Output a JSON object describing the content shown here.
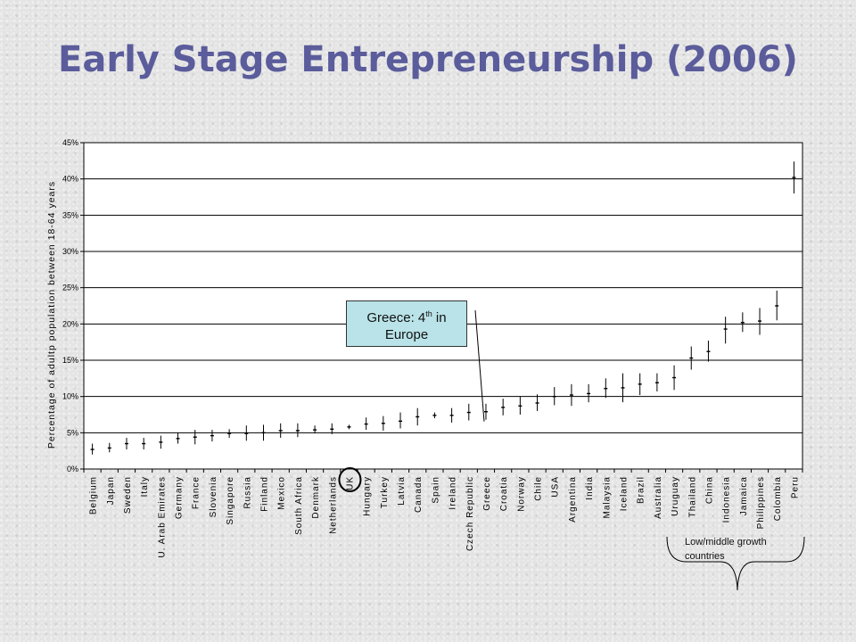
{
  "title": "Early Stage Entrepreneurship (2006)",
  "callout": {
    "text": "Greece: 4",
    "sup": "th",
    "text2": " in",
    "line2": "Europe"
  },
  "group_label": {
    "line1": "Low/middle growth",
    "line2": "countries"
  },
  "chart_data": {
    "type": "errorbar",
    "ylabel": "Percentage of adultp population between 18-64 years",
    "ylim": [
      0,
      45
    ],
    "yticks": [
      "0%",
      "5%",
      "10%",
      "15%",
      "20%",
      "25%",
      "30%",
      "35%",
      "40%",
      "45%"
    ],
    "grid": true,
    "highlight": "UK",
    "categories": [
      "Belgium",
      "Japan",
      "Sweden",
      "Italy",
      "U. Arab Emirates",
      "Germany",
      "France",
      "Slovenia",
      "Singapore",
      "Russia",
      "Finland",
      "Mexico",
      "South Africa",
      "Denmark",
      "Netherlands",
      "UK",
      "Hungary",
      "Turkey",
      "Latvia",
      "Canada",
      "Spain",
      "Ireland",
      "Czech Republic",
      "Greece",
      "Croatia",
      "Norway",
      "Chile",
      "USA",
      "Argentina",
      "India",
      "Malaysia",
      "Iceland",
      "Brazil",
      "Australia",
      "Uruguay",
      "Thailand",
      "China",
      "Indonesia",
      "Jamaica",
      "Philippines",
      "Colombia",
      "Peru"
    ],
    "values": [
      2.7,
      2.9,
      3.5,
      3.5,
      3.7,
      4.2,
      4.4,
      4.6,
      4.9,
      4.9,
      5.0,
      5.3,
      5.3,
      5.4,
      5.5,
      5.8,
      6.2,
      6.3,
      6.6,
      7.2,
      7.4,
      7.4,
      7.8,
      7.9,
      8.5,
      8.7,
      9.1,
      10.0,
      10.2,
      10.4,
      11.1,
      11.2,
      11.7,
      11.9,
      12.6,
      15.3,
      16.2,
      19.3,
      20.2,
      20.4,
      22.5,
      40.2
    ],
    "lower": [
      2.0,
      2.3,
      2.7,
      2.7,
      2.8,
      3.5,
      3.4,
      3.8,
      4.3,
      3.9,
      3.9,
      4.3,
      4.4,
      4.9,
      4.8,
      5.5,
      5.4,
      5.3,
      5.6,
      6.0,
      7.0,
      6.4,
      6.7,
      6.8,
      7.4,
      7.5,
      8.0,
      8.8,
      8.7,
      9.2,
      9.8,
      9.2,
      10.2,
      10.7,
      10.9,
      13.7,
      14.8,
      17.3,
      18.9,
      18.5,
      20.5,
      38.0
    ],
    "upper": [
      3.5,
      3.6,
      4.3,
      4.3,
      4.6,
      5.0,
      5.4,
      5.4,
      5.5,
      6.0,
      6.1,
      6.3,
      6.3,
      6.0,
      6.3,
      6.1,
      7.1,
      7.3,
      7.8,
      8.4,
      7.8,
      8.4,
      9.0,
      9.0,
      9.7,
      10.0,
      10.3,
      11.3,
      11.7,
      11.7,
      12.5,
      13.2,
      13.2,
      13.2,
      14.3,
      16.9,
      17.7,
      21.0,
      21.6,
      22.2,
      24.6,
      42.4
    ]
  }
}
